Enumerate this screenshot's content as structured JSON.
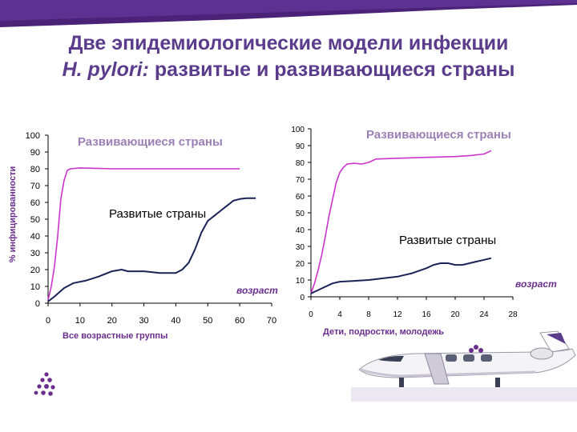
{
  "title": {
    "line1": "Две эпидемиологические модели инфекции",
    "line2_italic": "H. pylori:",
    "line2_rest": " развитые и развивающиеся страны"
  },
  "colors": {
    "title": "#5a3b8c",
    "developing": "#cc33cc",
    "developed": "#1a2357",
    "banner_purple": "#4a2378",
    "developing_label": "#9b7fb5",
    "caption": "#6b2d8e"
  },
  "chart_data": [
    {
      "type": "line",
      "ylabel": "% инфицированности",
      "xlabel": "Все возрастные группы",
      "x_note": "возраст",
      "xlim": [
        0,
        70
      ],
      "ylim": [
        0,
        100
      ],
      "x_ticks": [
        0,
        10,
        20,
        30,
        40,
        50,
        60,
        70
      ],
      "y_ticks": [
        0,
        10,
        20,
        30,
        40,
        50,
        60,
        70,
        80,
        90,
        100
      ],
      "grid": false,
      "series": [
        {
          "name": "Развивающиеся страны",
          "color": "#cc33cc",
          "points": [
            [
              0,
              2
            ],
            [
              1,
              10
            ],
            [
              2,
              22
            ],
            [
              3,
              40
            ],
            [
              4,
              62
            ],
            [
              5,
              73
            ],
            [
              6,
              79
            ],
            [
              7,
              80
            ],
            [
              10,
              80.5
            ],
            [
              15,
              80.3
            ],
            [
              20,
              80
            ],
            [
              30,
              80
            ],
            [
              40,
              80
            ],
            [
              50,
              80
            ],
            [
              60,
              80
            ]
          ]
        },
        {
          "name": "Развитые страны",
          "color": "#1a2357",
          "points": [
            [
              0,
              1
            ],
            [
              2,
              4
            ],
            [
              5,
              9
            ],
            [
              8,
              12
            ],
            [
              12,
              13.5
            ],
            [
              16,
              16
            ],
            [
              20,
              19
            ],
            [
              23,
              20
            ],
            [
              25,
              19
            ],
            [
              30,
              19
            ],
            [
              35,
              18
            ],
            [
              40,
              18
            ],
            [
              42,
              20
            ],
            [
              44,
              24
            ],
            [
              46,
              32
            ],
            [
              48,
              42
            ],
            [
              50,
              49
            ],
            [
              52,
              52
            ],
            [
              54,
              55
            ],
            [
              56,
              58
            ],
            [
              58,
              61
            ],
            [
              60,
              62
            ],
            [
              62,
              62.5
            ],
            [
              65,
              62.5
            ]
          ]
        }
      ]
    },
    {
      "type": "line",
      "xlabel": "Дети, подростки, молодежь",
      "x_note": "возраст",
      "xlim": [
        0,
        28
      ],
      "ylim": [
        0,
        100
      ],
      "x_ticks": [
        0,
        4,
        8,
        12,
        16,
        20,
        24,
        28
      ],
      "y_ticks": [
        0,
        10,
        20,
        30,
        40,
        50,
        60,
        70,
        80,
        90,
        100
      ],
      "grid": false,
      "series": [
        {
          "name": "Развивающиеся страны",
          "color": "#cc33cc",
          "points": [
            [
              0,
              2
            ],
            [
              0.5,
              8
            ],
            [
              1,
              16
            ],
            [
              1.5,
              25
            ],
            [
              2,
              36
            ],
            [
              2.5,
              48
            ],
            [
              3,
              58
            ],
            [
              3.5,
              68
            ],
            [
              4,
              74
            ],
            [
              4.5,
              77
            ],
            [
              5,
              79
            ],
            [
              6,
              79.5
            ],
            [
              7,
              79
            ],
            [
              8,
              80
            ],
            [
              9,
              82
            ],
            [
              12,
              82.5
            ],
            [
              16,
              83
            ],
            [
              20,
              83.5
            ],
            [
              22,
              84
            ],
            [
              24,
              85
            ],
            [
              25,
              87
            ]
          ]
        },
        {
          "name": "Развитые страны",
          "color": "#1a2357",
          "points": [
            [
              0,
              2
            ],
            [
              1,
              4
            ],
            [
              2,
              6
            ],
            [
              3,
              8
            ],
            [
              4,
              9
            ],
            [
              6,
              9.5
            ],
            [
              8,
              10
            ],
            [
              10,
              11
            ],
            [
              12,
              12
            ],
            [
              14,
              14
            ],
            [
              16,
              17
            ],
            [
              17,
              19
            ],
            [
              18,
              20
            ],
            [
              19,
              20
            ],
            [
              20,
              19
            ],
            [
              21,
              19
            ],
            [
              22,
              20
            ],
            [
              23,
              21
            ],
            [
              24,
              22
            ],
            [
              25,
              23
            ]
          ]
        }
      ]
    }
  ]
}
